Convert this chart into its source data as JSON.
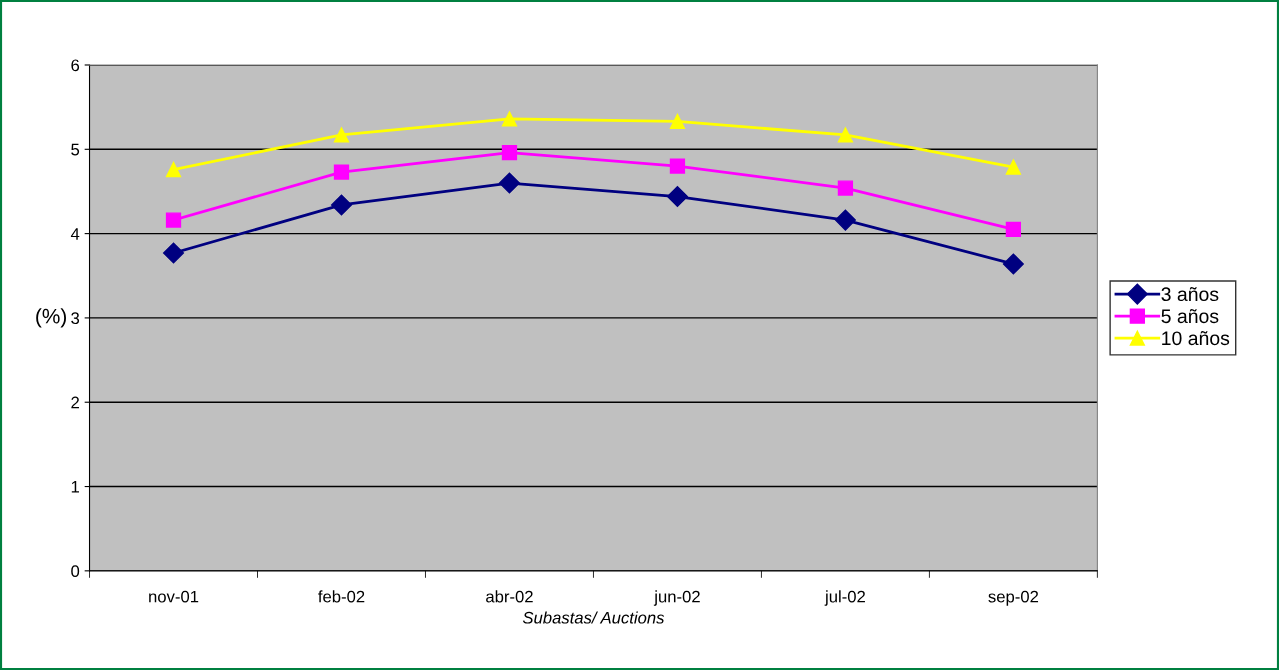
{
  "chart_data": {
    "type": "line",
    "xlabel": "Subastas/ Auctions",
    "ylabel": "(%)",
    "categories": [
      "nov-01",
      "feb-02",
      "abr-02",
      "jun-02",
      "jul-02",
      "sep-02"
    ],
    "series": [
      {
        "name": "3 años",
        "color": "#000080",
        "marker": "diamond",
        "values": [
          3.77,
          4.34,
          4.6,
          4.44,
          4.16,
          3.64
        ]
      },
      {
        "name": "5 años",
        "color": "#ff00ff",
        "marker": "square",
        "values": [
          4.16,
          4.73,
          4.96,
          4.8,
          4.54,
          4.05
        ]
      },
      {
        "name": "10 años",
        "color": "#ffff00",
        "marker": "triangle",
        "values": [
          4.76,
          5.17,
          5.36,
          5.33,
          5.17,
          4.79
        ]
      }
    ],
    "ylim": [
      0,
      6
    ],
    "yticks": [
      0,
      1,
      2,
      3,
      4,
      5,
      6
    ],
    "grid": "y",
    "legend": "right",
    "line_style": "solid"
  }
}
